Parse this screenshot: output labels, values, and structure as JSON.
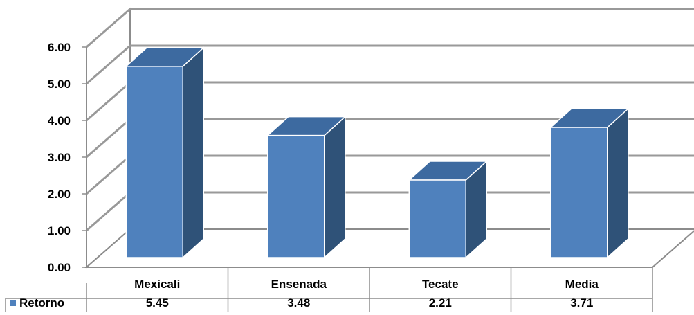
{
  "chart_data": {
    "type": "bar",
    "title": "",
    "xlabel": "",
    "ylabel": "",
    "categories": [
      "Mexicali",
      "Ensenada",
      "Tecate",
      "Media"
    ],
    "series": [
      {
        "name": "Retorno",
        "values": [
          5.45,
          3.48,
          2.21,
          3.71
        ],
        "value_labels": [
          "5.45",
          "3.48",
          "2.21",
          "3.71"
        ]
      }
    ],
    "ylim": [
      0,
      6
    ],
    "yticks": [
      "0.00",
      "1.00",
      "2.00",
      "3.00",
      "4.00",
      "5.00",
      "6.00"
    ],
    "grid": true,
    "legend": "data-table-row",
    "style": "3d-column",
    "colors": {
      "front": "#4f81bd",
      "top": "#3d6aa0",
      "side": "#2f5278",
      "grid": "#999999"
    }
  }
}
